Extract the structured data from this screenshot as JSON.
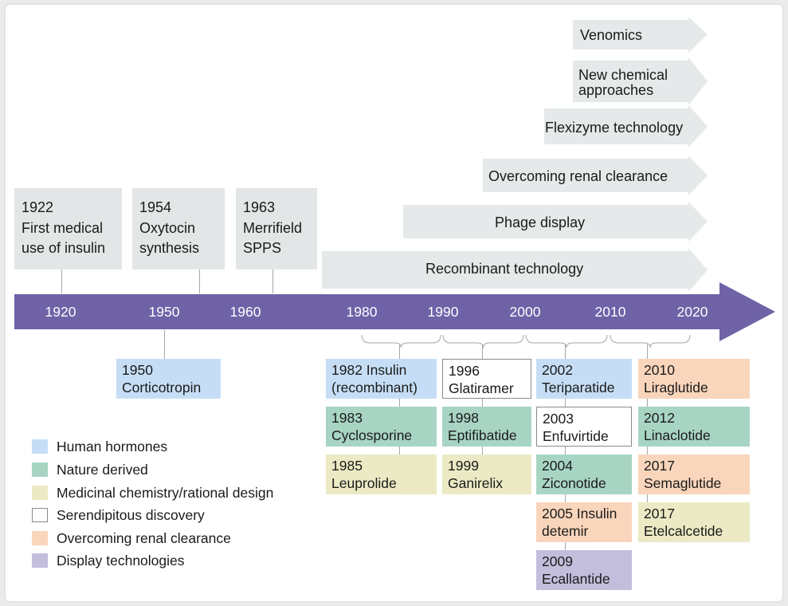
{
  "colors": {
    "Human hormones": "#c6def5",
    "Nature derived": "#a8d5c3",
    "Medicinal chemistry/rational design": "#ebeac4",
    "Serendipitous discovery": "#ffffff",
    "Overcoming renal clearance": "#f9d5bb",
    "Display technologies": "#c3bedc",
    "timeline": "#6f62a7",
    "tech_arrow": "#e5e9e9",
    "milestone": "#e3e6e6"
  },
  "timeline_ticks": [
    "1920",
    "1950",
    "1960",
    "1980",
    "1990",
    "2000",
    "2010",
    "2020"
  ],
  "milestones_above": [
    {
      "year": "1922",
      "lines": [
        "First medical",
        "use of insulin"
      ]
    },
    {
      "year": "1954",
      "lines": [
        "Oxytocin",
        "synthesis"
      ]
    },
    {
      "year": "1963",
      "lines": [
        "Merrifield",
        "SPPS"
      ]
    }
  ],
  "technologies": [
    "Venomics",
    "New chemical approaches",
    "Flexizyme technology",
    "Overcoming renal clearance",
    "Phage display",
    "Recombinant technology"
  ],
  "technology_lines": {
    "Venomics": [
      "Venomics"
    ],
    "New chemical approaches": [
      "New chemical",
      "approaches"
    ],
    "Flexizyme technology": [
      "Flexizyme technology"
    ],
    "Overcoming renal clearance": [
      "Overcoming renal clearance"
    ],
    "Phage display": [
      "Phage display"
    ],
    "Recombinant technology": [
      "Recombinant technology"
    ]
  },
  "drugs": [
    {
      "year": "1950",
      "name": "Corticotropin",
      "category": "Human hormones"
    },
    {
      "year": "1982 Insulin",
      "name": "(recombinant)",
      "category": "Human hormones"
    },
    {
      "year": "1983",
      "name": "Cyclosporine",
      "category": "Nature derived"
    },
    {
      "year": "1985",
      "name": "Leuprolide",
      "category": "Medicinal chemistry/rational design"
    },
    {
      "year": "1996",
      "name": "Glatiramer",
      "category": "Serendipitous discovery"
    },
    {
      "year": "1998",
      "name": "Eptifibatide",
      "category": "Nature derived"
    },
    {
      "year": "1999",
      "name": "Ganirelix",
      "category": "Medicinal chemistry/rational design"
    },
    {
      "year": "2002",
      "name": "Teriparatide",
      "category": "Human hormones"
    },
    {
      "year": "2003",
      "name": "Enfuvirtide",
      "category": "Serendipitous discovery"
    },
    {
      "year": "2004",
      "name": "Ziconotide",
      "category": "Nature derived"
    },
    {
      "year": "2005 Insulin",
      "name": "detemir",
      "category": "Overcoming renal clearance"
    },
    {
      "year": "2009",
      "name": "Ecallantide",
      "category": "Display technologies"
    },
    {
      "year": "2010",
      "name": "Liraglutide",
      "category": "Overcoming renal clearance"
    },
    {
      "year": "2012",
      "name": "Linaclotide",
      "category": "Nature derived"
    },
    {
      "year": "2017",
      "name": "Semaglutide",
      "category": "Overcoming renal clearance"
    },
    {
      "year": "2017",
      "name": "Etelcalcetide",
      "category": "Medicinal chemistry/rational design"
    }
  ],
  "legend": [
    "Human hormones",
    "Nature derived",
    "Medicinal chemistry/rational design",
    "Serendipitous discovery",
    "Overcoming renal clearance",
    "Display technologies"
  ]
}
